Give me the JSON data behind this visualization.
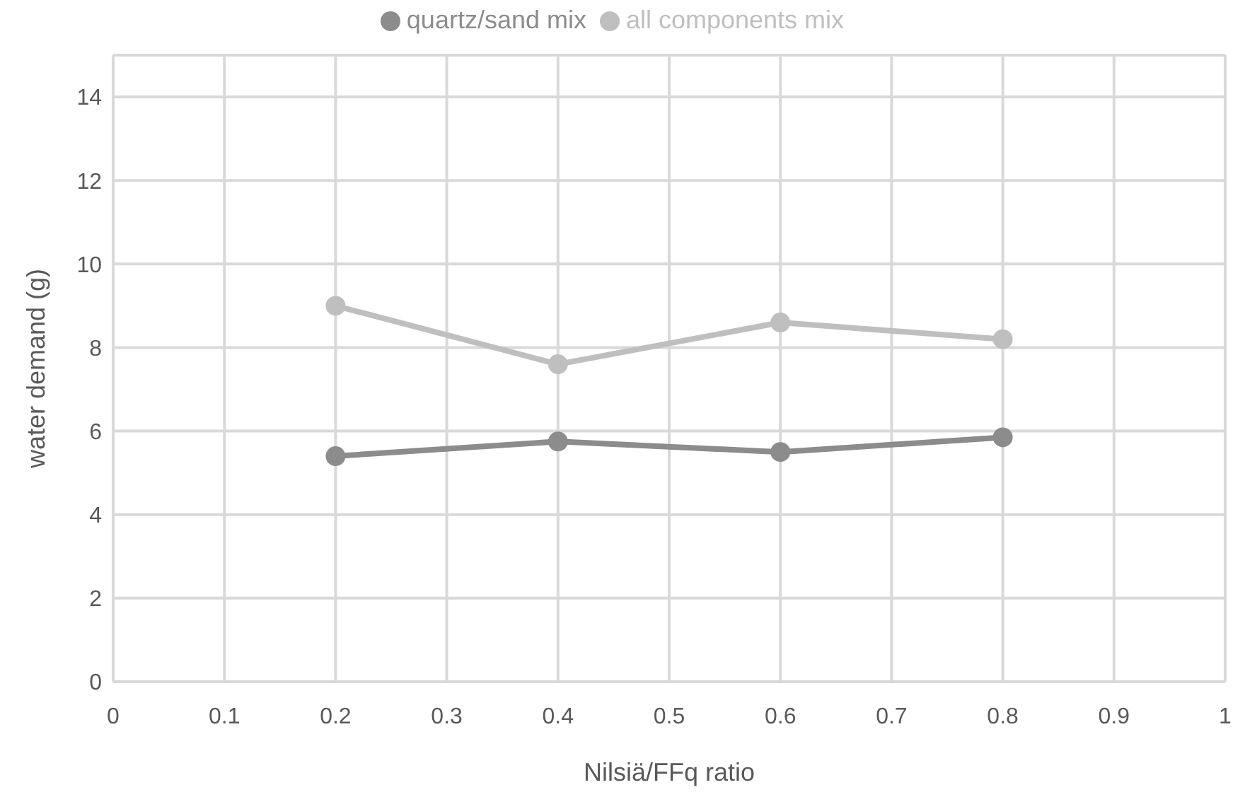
{
  "chart_data": {
    "type": "line",
    "xlabel": "Nilsiä/FFq ratio",
    "ylabel": "water demand (g)",
    "x": [
      0.2,
      0.4,
      0.6,
      0.8
    ],
    "series": [
      {
        "name": "quartz/sand mix",
        "color": "#8c8c8c",
        "values": [
          5.4,
          5.75,
          5.5,
          5.85
        ]
      },
      {
        "name": "all components mix",
        "color": "#bfbfbf",
        "values": [
          9.0,
          7.6,
          8.6,
          8.2
        ]
      }
    ],
    "xlim": [
      0,
      1
    ],
    "xticks": [
      0,
      0.1,
      0.2,
      0.3,
      0.4,
      0.5,
      0.6,
      0.7,
      0.8,
      0.9,
      1
    ],
    "ylim": [
      0,
      15
    ],
    "yticks": [
      0,
      2,
      4,
      6,
      8,
      10,
      12,
      14
    ],
    "grid": true,
    "legend": "top",
    "marker": "circle",
    "line_style": "solid"
  }
}
